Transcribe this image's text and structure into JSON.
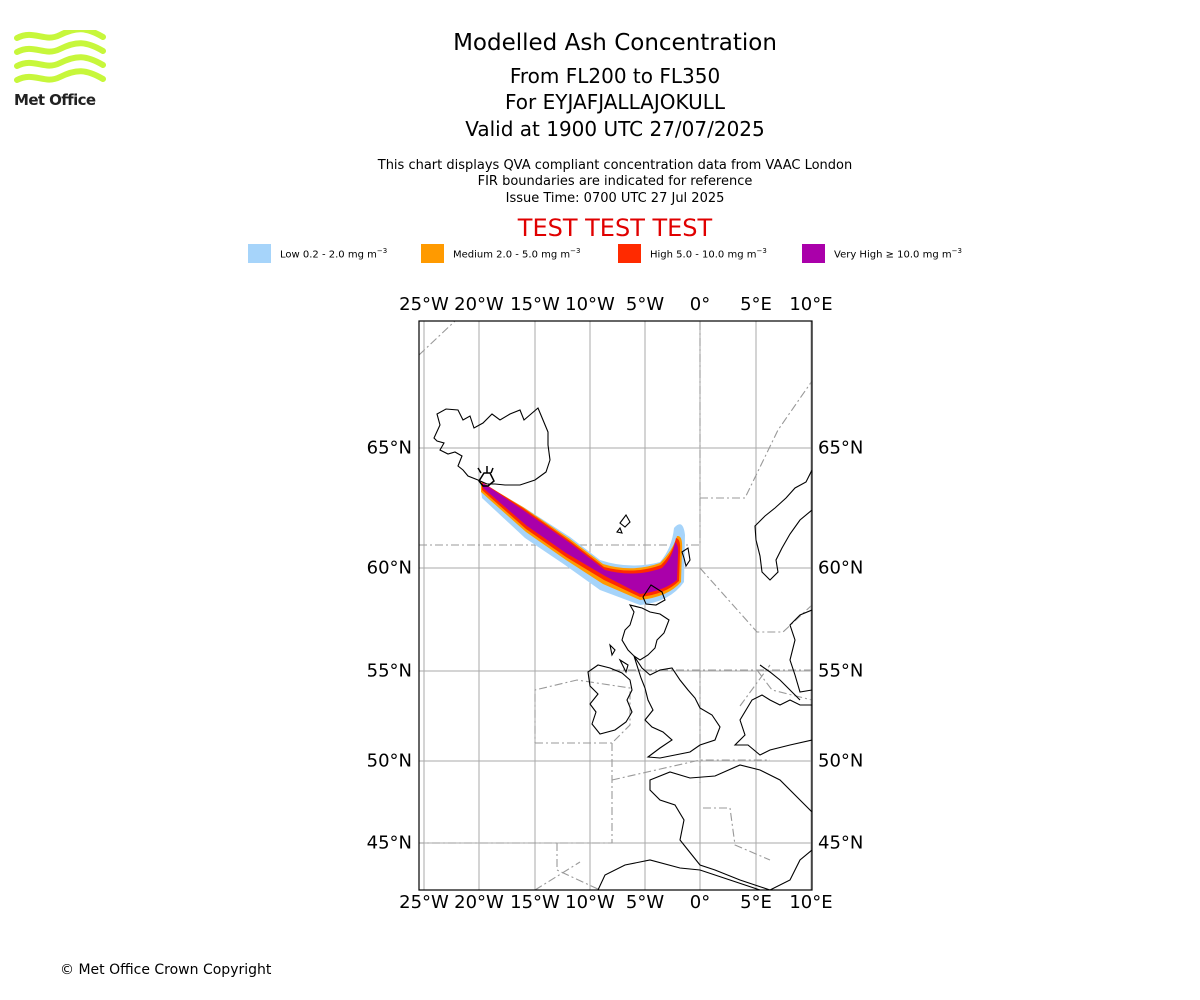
{
  "logo": {
    "text": "Met Office",
    "color": "#c7f73b"
  },
  "title": "Modelled Ash Concentration",
  "subtitle_lines": [
    "From FL200 to FL350",
    "For EYJAFJALLAJOKULL",
    "Valid at 1900 UTC 27/07/2025"
  ],
  "info_lines": [
    "This chart displays QVA compliant concentration data from VAAC London",
    "FIR boundaries are indicated for reference",
    "Issue Time: 0700 UTC 27 Jul 2025"
  ],
  "test_banner": "TEST TEST TEST",
  "legend": [
    {
      "prefix": "Low 0.2 - 2.0 mg m",
      "suffix": "−3",
      "color": "#a6d4fa"
    },
    {
      "prefix": "Medium 2.0 - 5.0 mg m",
      "suffix": "−3",
      "color": "#ff9a00"
    },
    {
      "prefix": "High 5.0 - 10.0 mg m",
      "suffix": "−3",
      "color": "#ff2a00"
    },
    {
      "prefix": "Very High  ≥  10.0 mg m",
      "suffix": "−3",
      "color": "#aa00aa"
    }
  ],
  "map": {
    "lon_ticks": [
      "25°W",
      "20°W",
      "15°W",
      "10°W",
      "5°W",
      "0°",
      "5°E",
      "10°E"
    ],
    "lat_ticks": [
      "65°N",
      "60°N",
      "55°N",
      "50°N",
      "45°N"
    ],
    "volcano": "EYJAFJALLAJOKULL"
  },
  "copyright": "© Met Office Crown Copyright"
}
